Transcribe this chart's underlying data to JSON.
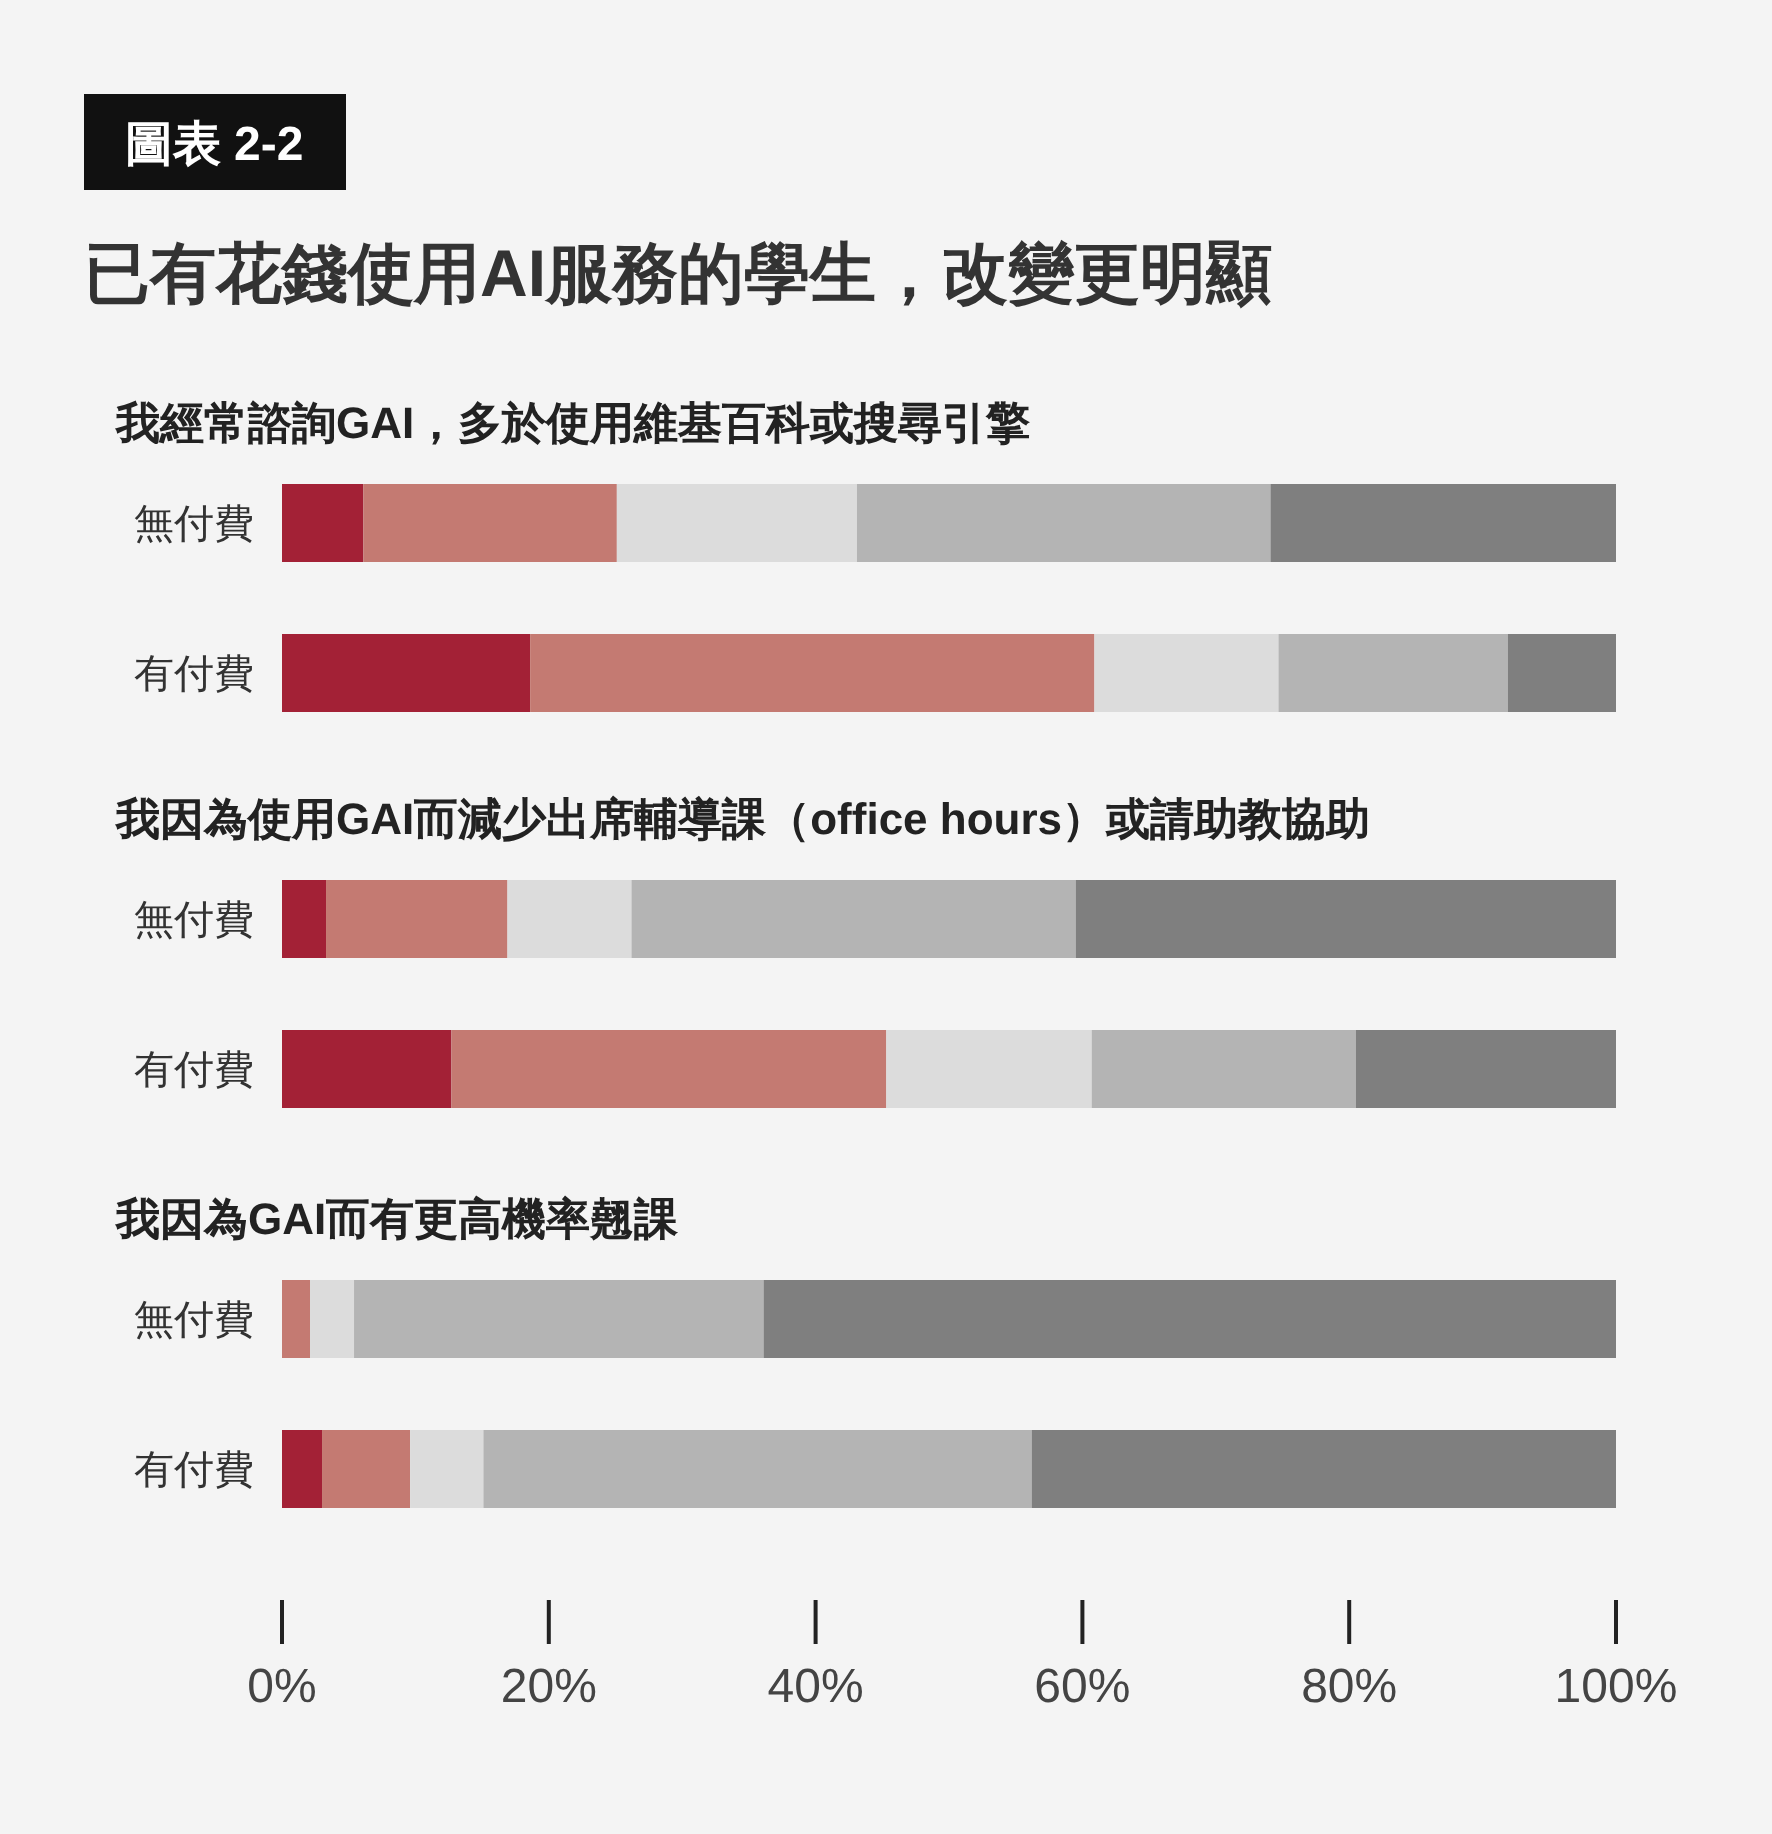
{
  "chart_data": [
    {
      "type": "bar",
      "orientation": "horizontal",
      "stacked": true,
      "annotations": [
        "圖表 2-2"
      ],
      "title": "已有花錢使用AI服務的學生，改變更明顯",
      "subtitle": "我經常諮詢GAI，多於使用維基百科或搜尋引擎",
      "categories": [
        "無付費",
        "有付費"
      ],
      "xlim": [
        0,
        100
      ],
      "tick_labels": "y",
      "series": [
        {
          "color": "#a32136",
          "values": [
            6.1,
            18.6
          ]
        },
        {
          "color": "#c47a72",
          "values": [
            19.0,
            42.3
          ]
        },
        {
          "color": "#dcdcdc",
          "values": [
            18.0,
            13.8
          ]
        },
        {
          "color": "#b4b4b4",
          "values": [
            31.0,
            17.2
          ]
        },
        {
          "color": "#7f7f7f",
          "values": [
            25.9,
            8.1
          ]
        }
      ]
    },
    {
      "type": "bar",
      "orientation": "horizontal",
      "stacked": true,
      "title": "我因為使用GAI而減少出席輔導課（office hours）或請助教協助",
      "categories": [
        "無付費",
        "有付費"
      ],
      "xlim": [
        0,
        100
      ],
      "tick_labels": "y",
      "series": [
        {
          "color": "#a32136",
          "values": [
            3.3,
            12.7
          ]
        },
        {
          "color": "#c47a72",
          "values": [
            13.6,
            32.6
          ]
        },
        {
          "color": "#dcdcdc",
          "values": [
            9.3,
            15.4
          ]
        },
        {
          "color": "#b4b4b4",
          "values": [
            33.3,
            19.8
          ]
        },
        {
          "color": "#7f7f7f",
          "values": [
            40.5,
            19.5
          ]
        }
      ]
    },
    {
      "type": "bar",
      "orientation": "horizontal",
      "stacked": true,
      "title": "我因為GAI而有更高機率翹課",
      "categories": [
        "無付費",
        "有付費"
      ],
      "xlim": [
        0,
        100
      ],
      "xticks": [
        {
          "value": 0,
          "label": "0%"
        },
        {
          "value": 20,
          "label": "20%"
        },
        {
          "value": 40,
          "label": "40%"
        },
        {
          "value": 60,
          "label": "60%"
        },
        {
          "value": 80,
          "label": "80%"
        },
        {
          "value": 100,
          "label": "100%"
        }
      ],
      "series": [
        {
          "color": "#a32136",
          "values": [
            0,
            3.0
          ]
        },
        {
          "color": "#c47a72",
          "values": [
            2.1,
            6.6
          ]
        },
        {
          "color": "#dcdcdc",
          "values": [
            3.3,
            5.5
          ]
        },
        {
          "color": "#b4b4b4",
          "values": [
            30.7,
            41.1
          ]
        },
        {
          "color": "#7f7f7f",
          "values": [
            63.9,
            43.8
          ]
        }
      ]
    }
  ]
}
